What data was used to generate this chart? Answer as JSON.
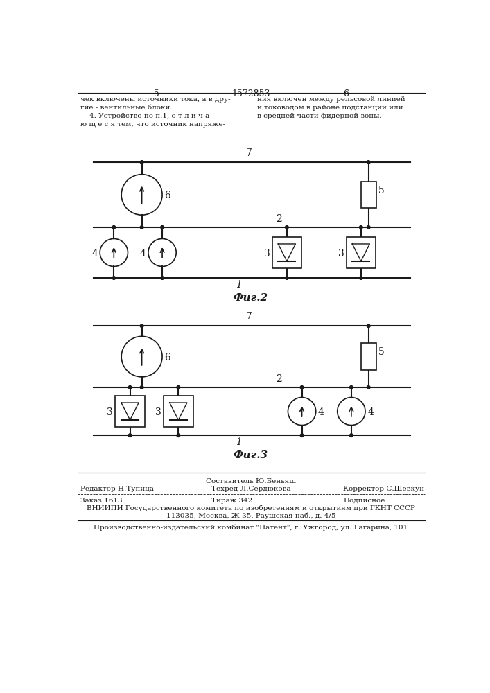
{
  "page_num_left": "5",
  "page_num_center": "1572853",
  "page_num_right": "6",
  "text_left_col": "чек включены источники тока, а в дру-\nгие - вентильные блоки.\n    4. Устройство по п.1, о т л и ч а-\nю щ е с я тем, что источник напряже-",
  "text_right_col": "ния включен между рельсовой линией\nи тоководом в районе подстанции или\nв средней части фидерной зоны.",
  "fig2_label": "Фиг.2",
  "fig3_label": "Фиг.3",
  "footer_line1_center": "Составитель Ю.Беньяш",
  "footer_line2_left": "Редактор Н.Тупица",
  "footer_line2_center": "Техред Л.Сердюкова",
  "footer_line2_right": "Корректор С.Шевкун",
  "footer_line3_left": "Заказ 1613",
  "footer_line3_center": "Тираж 342",
  "footer_line3_right": "Подписное",
  "footer_line4": "ВНИИПИ Государственного комитета по изобретениям и открытиям при ГКНТ СССР",
  "footer_line5": "113035, Москва, Ж-35, Раушская наб., д. 4/5",
  "footer_line6": "Производственно-издательский комбинат \"Патент\", г. Ужгород, ул. Гагарина, 101",
  "bg_color": "#ffffff",
  "line_color": "#1a1a1a",
  "text_color": "#1a1a1a"
}
